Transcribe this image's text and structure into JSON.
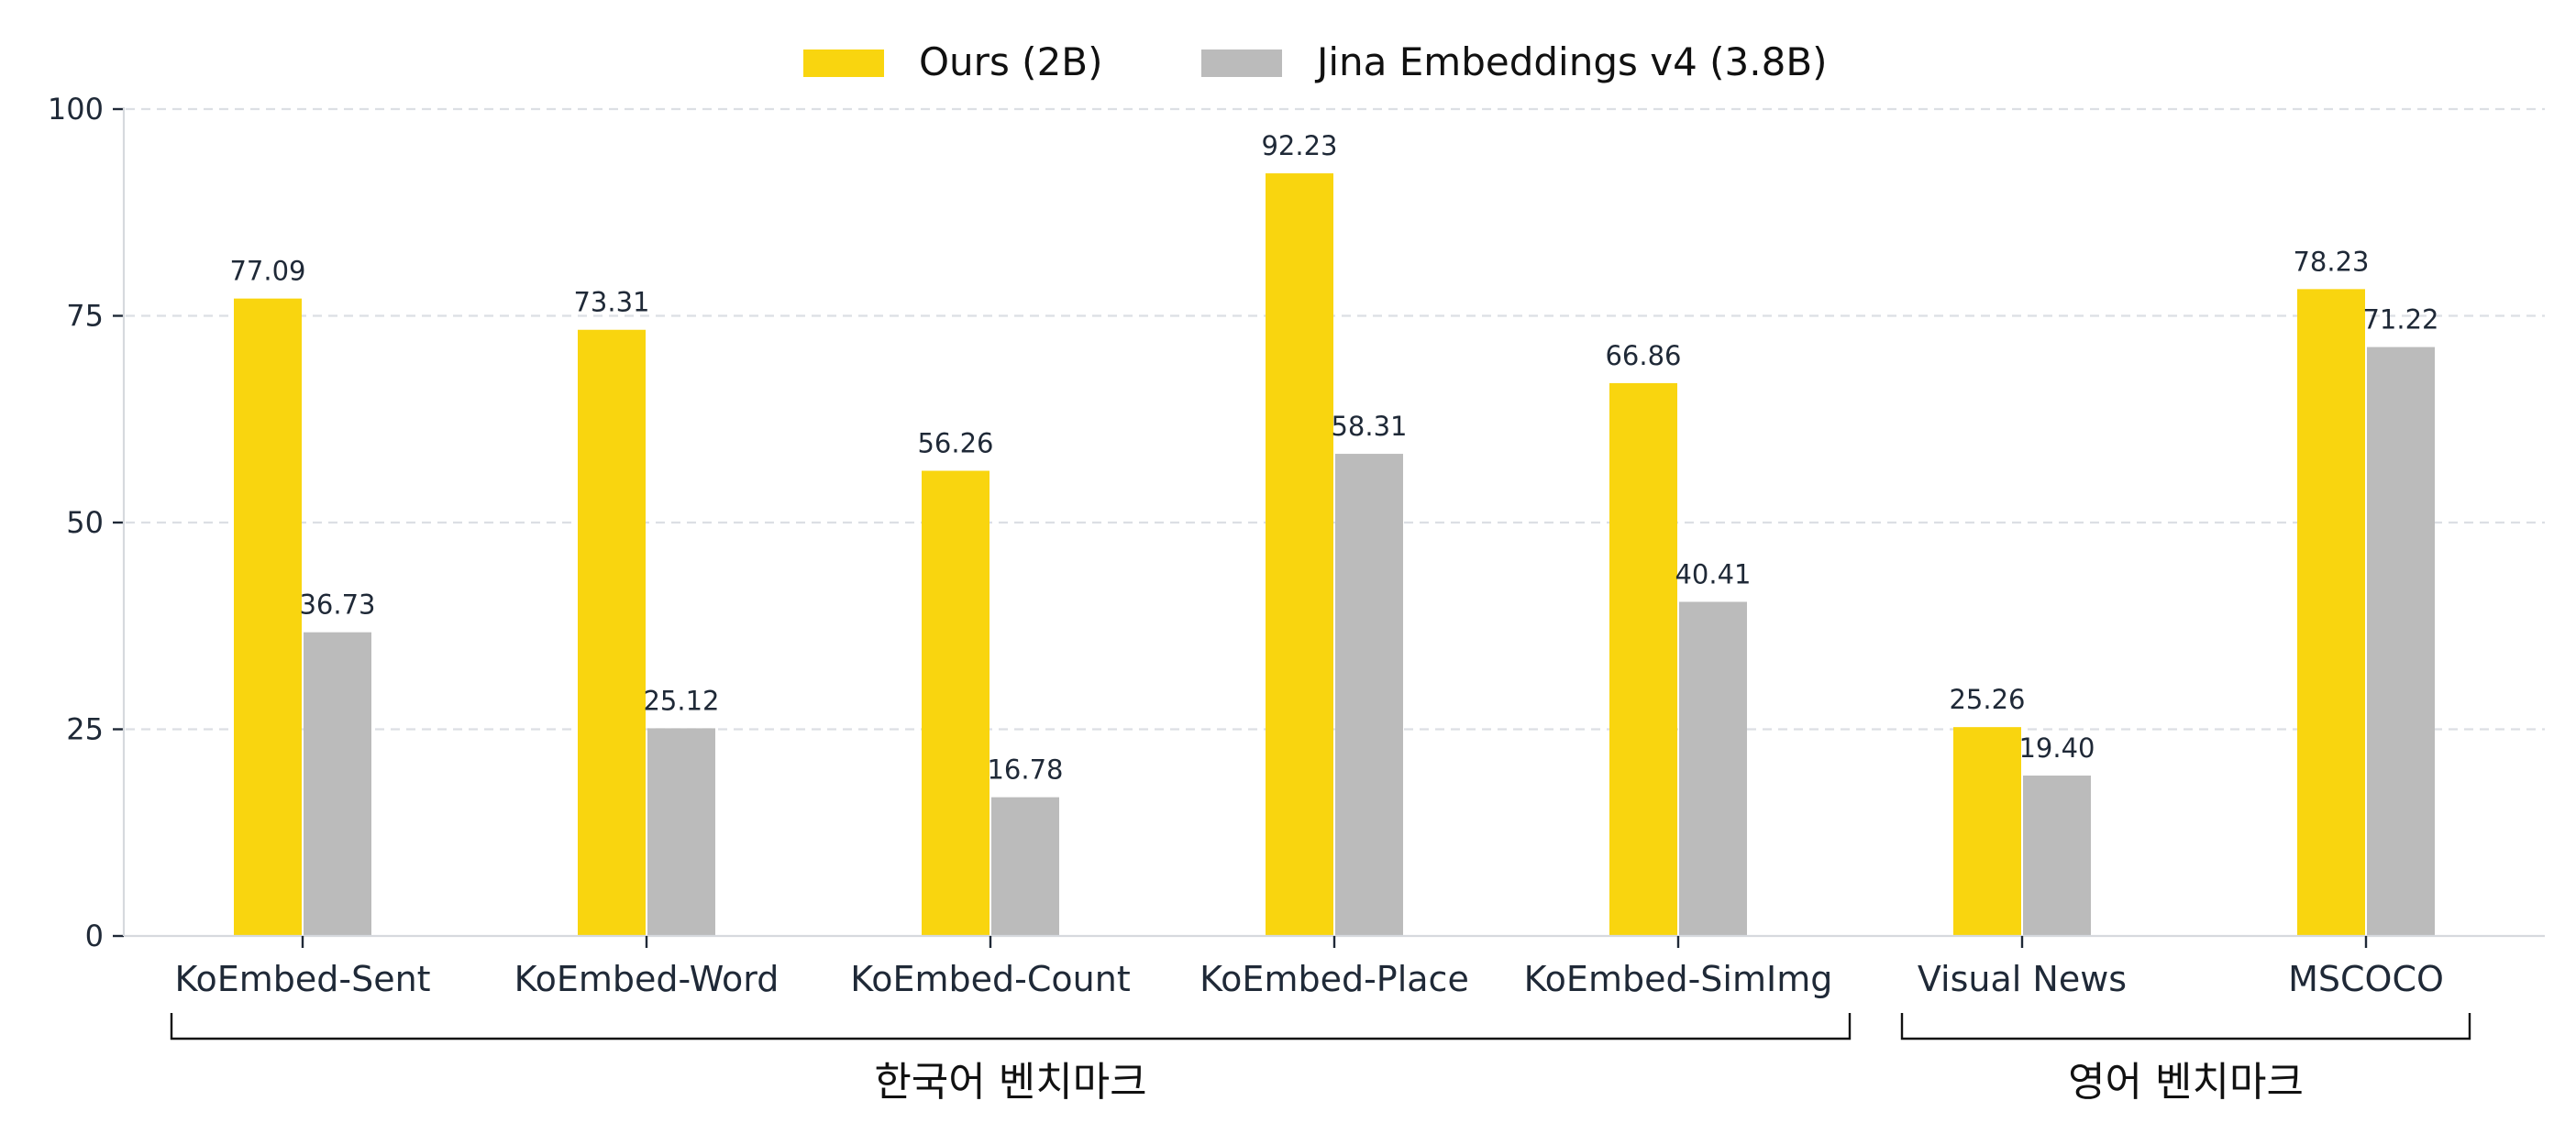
{
  "chart_data": {
    "type": "bar",
    "categories": [
      "KoEmbed-Sent",
      "KoEmbed-Word",
      "KoEmbed-Count",
      "KoEmbed-Place",
      "KoEmbed-SimImg",
      "Visual News",
      "MSCOCO"
    ],
    "series": [
      {
        "name": "Ours (2B)",
        "color": "#f9d50f",
        "values": [
          77.09,
          73.31,
          56.26,
          92.23,
          66.86,
          25.26,
          78.23
        ]
      },
      {
        "name": "Jina Embeddings v4 (3.8B)",
        "color": "#bbbbbb",
        "values": [
          36.73,
          25.12,
          16.78,
          58.31,
          40.41,
          19.4,
          71.22
        ]
      }
    ],
    "value_labels": [
      [
        "77.09",
        "73.31",
        "56.26",
        "92.23",
        "66.86",
        "25.26",
        "78.23"
      ],
      [
        "36.73",
        "25.12",
        "16.78",
        "58.31",
        "40.41",
        "19.40",
        "71.22"
      ]
    ],
    "yticks": [
      "0",
      "25",
      "50",
      "75",
      "100"
    ],
    "ylim": [
      0,
      100
    ],
    "grid": true,
    "legend_position": "top-center",
    "groups": [
      {
        "label": "한국어 벤치마크",
        "from": 0,
        "to": 4
      },
      {
        "label": "영어 벤치마크",
        "from": 5,
        "to": 6
      }
    ]
  }
}
